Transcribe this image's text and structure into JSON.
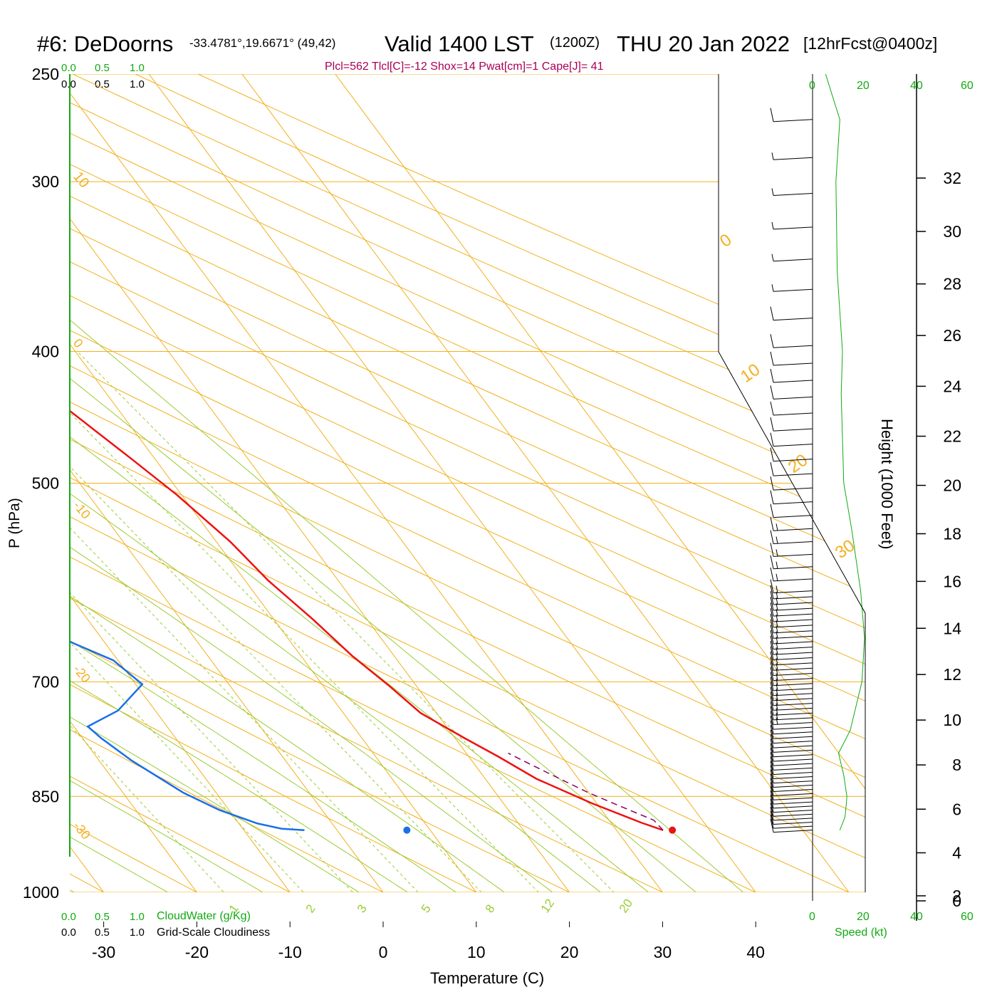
{
  "header": {
    "station": "#6: DeDoorns",
    "coords": "-33.4781°,19.6671° (49,42)",
    "valid": "Valid 1400 LST",
    "zulu": "(1200Z)",
    "date": "THU 20 Jan 2022",
    "fcst": "[12hrFcst@0400z]",
    "indices": "Plcl=562 Tlcl[C]=-12 Shox=14 Pwat[cm]=1 Cape[J]= 41"
  },
  "colors": {
    "isobar": "#f2b01e",
    "mixing": "#99cc33",
    "temperature": "#ee1111",
    "dewpoint": "#1a6fe8",
    "parcel": "#880066",
    "green": "#11aa11",
    "indices": "#aa0055"
  },
  "labels": {
    "ylabel": "P (hPa)",
    "xlabel": "Temperature (C)",
    "height_label": "Height (1000 Feet)",
    "cloudwater_label": "CloudWater (g/Kg)",
    "cloudiness_label": "Grid-Scale Cloudiness",
    "speed_label": "Speed (kt)"
  },
  "scales": {
    "cloud_ticks": [
      "0.0",
      "0.5",
      "1.0"
    ],
    "speed_ticks": [
      "0",
      "20",
      "40",
      "60"
    ]
  },
  "chart_data": {
    "type": "line",
    "title": "#6: DeDoorns Valid 1400 LST THU 20 Jan 2022",
    "xlabel": "Temperature (C)",
    "ylabel": "P (hPa)",
    "xlim": [
      -33,
      48
    ],
    "ylim": [
      1050,
      250
    ],
    "y_scale": "log",
    "x_ticks": [
      "-30",
      "-20",
      "-10",
      "0",
      "10",
      "20",
      "30",
      "40"
    ],
    "isobars": [
      "250",
      "300",
      "400",
      "500",
      "700",
      "850",
      "1000"
    ],
    "isotherm_labels": [
      "10",
      "0",
      "-10",
      "-20",
      "-30",
      "0",
      "10",
      "20",
      "30"
    ],
    "mixing_ratio_labels": [
      "1",
      "2",
      "3",
      "5",
      "8",
      "12",
      "20"
    ],
    "height_ticks": [
      "0",
      "2",
      "4",
      "6",
      "8",
      "10",
      "12",
      "14",
      "16",
      "18",
      "20",
      "22",
      "24",
      "26",
      "28",
      "30",
      "32"
    ],
    "series": [
      {
        "kind": "temperature",
        "points": [
          [
            35.0,
            900
          ],
          [
            33.3,
            889
          ],
          [
            29.5,
            860
          ],
          [
            25.5,
            825
          ],
          [
            23.2,
            795
          ],
          [
            21.0,
            770
          ],
          [
            18.3,
            738
          ],
          [
            17.1,
            705
          ],
          [
            15.5,
            670
          ],
          [
            14.2,
            630
          ],
          [
            12.5,
            590
          ],
          [
            11.5,
            552
          ],
          [
            9.5,
            510
          ],
          [
            7.5,
            480
          ],
          [
            4.5,
            440
          ],
          [
            1.5,
            408
          ],
          [
            -2.5,
            370
          ],
          [
            -6.5,
            340
          ],
          [
            -10.5,
            315
          ],
          [
            -13.5,
            297
          ],
          [
            -16.5,
            275
          ],
          [
            -19.5,
            250
          ]
        ]
      },
      {
        "kind": "dewpoint",
        "points": [
          [
            -3.5,
            900
          ],
          [
            -5.8,
            898
          ],
          [
            -8.0,
            890
          ],
          [
            -11.0,
            870
          ],
          [
            -13.5,
            845
          ],
          [
            -16.5,
            800
          ],
          [
            -18.0,
            770
          ],
          [
            -18.5,
            755
          ],
          [
            -14.0,
            735
          ],
          [
            -9.3,
            703
          ],
          [
            -10.5,
            675
          ],
          [
            -14.3,
            650
          ],
          [
            -16.5,
            625
          ],
          [
            -19.0,
            595
          ],
          [
            -24.5,
            545
          ],
          [
            -32.0,
            490
          ],
          [
            -33.5,
            462
          ],
          [
            -30.5,
            410
          ],
          [
            -30.0,
            378
          ],
          [
            -29.0,
            347
          ],
          [
            -31.0,
            323
          ],
          [
            -33.0,
            306
          ],
          [
            -33.5,
            280
          ],
          [
            -35.5,
            250
          ]
        ]
      },
      {
        "kind": "parcel",
        "points": [
          [
            35.0,
            900
          ],
          [
            34.8,
            885
          ],
          [
            33.0,
            870
          ],
          [
            30.0,
            845
          ],
          [
            27.5,
            820
          ],
          [
            25.5,
            800
          ],
          [
            24.5,
            790
          ]
        ]
      }
    ],
    "surface_temperature": 36,
    "surface_dewpoint": 7.5,
    "wind_speed_kt": [
      [
        900,
        10.5
      ],
      [
        880,
        12.5
      ],
      [
        860,
        13.0
      ],
      [
        850,
        13.2
      ],
      [
        820,
        12.0
      ],
      [
        790,
        10.0
      ],
      [
        760,
        14.5
      ],
      [
        700,
        19.0
      ],
      [
        650,
        20.0
      ],
      [
        600,
        18.5
      ],
      [
        540,
        15.0
      ],
      [
        500,
        12.0
      ],
      [
        430,
        11.0
      ],
      [
        400,
        11.5
      ],
      [
        350,
        9.5
      ],
      [
        300,
        9.0
      ],
      [
        270,
        10.5
      ],
      [
        250,
        5.0
      ]
    ]
  }
}
